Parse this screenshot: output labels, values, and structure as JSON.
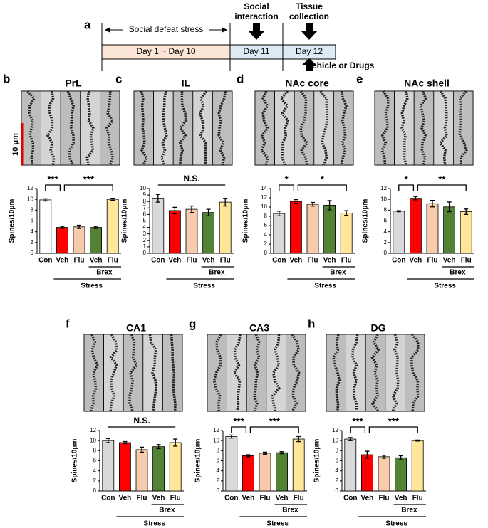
{
  "timeline": {
    "letter": "a",
    "stress_label": "Social defeat stress",
    "periods": [
      "Day 1 ~ Day 10",
      "Day 11",
      "Day 12"
    ],
    "social_interaction": [
      "Social",
      "interaction"
    ],
    "tissue_collection": [
      "Tissue",
      "collection"
    ],
    "treatment": "Vehicle or Drugs"
  },
  "chart_data": [
    {
      "type": "bar",
      "letter": "b",
      "title": "PrL",
      "image_scale_label": "10 μm",
      "y_label": "Spines/10μm",
      "categories": [
        "Con",
        "Veh",
        "Flu",
        "Veh",
        "Flu"
      ],
      "values": [
        9.9,
        4.8,
        4.9,
        4.8,
        10
      ],
      "errors": [
        0.2,
        0.2,
        0.3,
        0.2,
        0.2
      ],
      "colors": [
        "#ffffff",
        "#ff0000",
        "#f8cbad",
        "#548235",
        "#ffe699"
      ],
      "ylim": [
        0,
        12
      ],
      "yticks": [
        0,
        2,
        4,
        6,
        8,
        10,
        12
      ],
      "significance": [
        "***",
        "***"
      ],
      "groups": [
        "Brex",
        "Stress"
      ]
    },
    {
      "type": "bar",
      "letter": "c",
      "title": "IL",
      "y_label": "Spines/10μm",
      "categories": [
        "Con",
        "Veh",
        "Flu",
        "Veh",
        "Flu"
      ],
      "values": [
        8.5,
        6.6,
        6.8,
        6.3,
        7.9
      ],
      "errors": [
        0.6,
        0.5,
        0.5,
        0.5,
        0.6
      ],
      "colors": [
        "#d9d9d9",
        "#ff0000",
        "#f8cbad",
        "#548235",
        "#ffe699"
      ],
      "ylim": [
        0,
        10
      ],
      "yticks": [
        0,
        1,
        2,
        3,
        4,
        5,
        6,
        7,
        8,
        9,
        10
      ],
      "significance": [
        "N.S."
      ],
      "groups": [
        "Brex",
        "Stress"
      ]
    },
    {
      "type": "bar",
      "letter": "d",
      "title": "NAc core",
      "y_label": "Spines/10μm",
      "categories": [
        "Con",
        "Veh",
        "Flu",
        "Veh",
        "Flu"
      ],
      "values": [
        8.6,
        11.2,
        10.6,
        10.4,
        8.7
      ],
      "errors": [
        0.5,
        0.4,
        0.4,
        1.0,
        0.5
      ],
      "colors": [
        "#d9d9d9",
        "#ff0000",
        "#f8cbad",
        "#548235",
        "#ffe699"
      ],
      "ylim": [
        0,
        14
      ],
      "yticks": [
        0,
        2,
        4,
        6,
        8,
        10,
        12,
        14
      ],
      "significance": [
        "*",
        "*"
      ],
      "groups": [
        "Brex",
        "Stress"
      ]
    },
    {
      "type": "bar",
      "letter": "e",
      "title": "NAc shell",
      "y_label": "Spines/10μm",
      "categories": [
        "Con",
        "Veh",
        "Flu",
        "Veh",
        "Flu"
      ],
      "values": [
        7.8,
        10.2,
        9.2,
        8.6,
        7.7
      ],
      "errors": [
        0.1,
        0.3,
        0.6,
        0.9,
        0.5
      ],
      "colors": [
        "#d9d9d9",
        "#ff0000",
        "#f8cbad",
        "#548235",
        "#ffe699"
      ],
      "ylim": [
        0,
        12
      ],
      "yticks": [
        0,
        2,
        4,
        6,
        8,
        10,
        12
      ],
      "significance": [
        "*",
        "**"
      ],
      "groups": [
        "Brex",
        "Stress"
      ]
    },
    {
      "type": "bar",
      "letter": "f",
      "title": "CA1",
      "y_label": "Spines/10μm",
      "categories": [
        "Con",
        "Veh",
        "Flu",
        "Veh",
        "Flu"
      ],
      "values": [
        10,
        9.6,
        8.2,
        8.8,
        9.6
      ],
      "errors": [
        0.4,
        0.2,
        0.5,
        0.4,
        0.7
      ],
      "colors": [
        "#d9d9d9",
        "#ff0000",
        "#f8cbad",
        "#548235",
        "#ffe699"
      ],
      "ylim": [
        0,
        12
      ],
      "yticks": [
        0,
        2,
        4,
        6,
        8,
        10,
        12
      ],
      "significance": [
        "N.S."
      ],
      "groups": [
        "Brex",
        "Stress"
      ]
    },
    {
      "type": "bar",
      "letter": "g",
      "title": "CA3",
      "y_label": "Spines/10μm",
      "categories": [
        "Con",
        "Veh",
        "Flu",
        "Veh",
        "Flu"
      ],
      "values": [
        10.8,
        7.0,
        7.5,
        7.6,
        10.3
      ],
      "errors": [
        0.3,
        0.2,
        0.2,
        0.2,
        0.5
      ],
      "colors": [
        "#d9d9d9",
        "#ff0000",
        "#f8cbad",
        "#548235",
        "#ffe699"
      ],
      "ylim": [
        0,
        12
      ],
      "yticks": [
        0,
        2,
        4,
        6,
        8,
        10,
        12
      ],
      "significance": [
        "***",
        "***"
      ],
      "groups": [
        "Brex",
        "Stress"
      ]
    },
    {
      "type": "bar",
      "letter": "h",
      "title": "DG",
      "y_label": "Spines/10μm",
      "categories": [
        "Con",
        "Veh",
        "Flu",
        "Veh",
        "Flu"
      ],
      "values": [
        10.3,
        7.2,
        6.8,
        6.6,
        10
      ],
      "errors": [
        0.3,
        0.7,
        0.3,
        0.4,
        0.1
      ],
      "colors": [
        "#d9d9d9",
        "#ff0000",
        "#f8cbad",
        "#548235",
        "#ffe699"
      ],
      "ylim": [
        0,
        12
      ],
      "yticks": [
        0,
        2,
        4,
        6,
        8,
        10,
        12
      ],
      "significance": [
        "***",
        "***"
      ],
      "groups": [
        "Brex",
        "Stress"
      ]
    }
  ]
}
